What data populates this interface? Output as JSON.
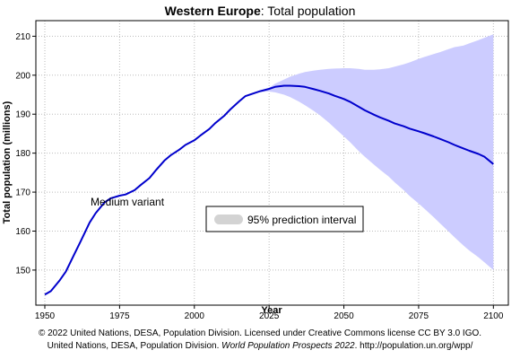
{
  "chart_data": {
    "type": "line",
    "title_bold": "Western Europe",
    "title_rest": ": Total population",
    "xlabel": "Year",
    "ylabel": "Total population (millions)",
    "xlim": [
      1947,
      2105
    ],
    "ylim": [
      141,
      214
    ],
    "xticks": [
      1950,
      1975,
      2000,
      2025,
      2050,
      2075,
      2100
    ],
    "yticks": [
      150,
      160,
      170,
      180,
      190,
      200,
      210
    ],
    "grid": true,
    "line_color": "#0000cc",
    "band_color": "#ccccff",
    "annotation": "Medium variant",
    "legend": {
      "label": "95% prediction interval",
      "placement": "center-right"
    },
    "series": [
      {
        "name": "Medium variant",
        "x": [
          1950,
          1952,
          1955,
          1957,
          1960,
          1962,
          1965,
          1967,
          1970,
          1972,
          1975,
          1977,
          1980,
          1982,
          1985,
          1987,
          1990,
          1992,
          1995,
          1997,
          2000,
          2002,
          2005,
          2007,
          2010,
          2012,
          2015,
          2017,
          2020,
          2022,
          2025,
          2027,
          2030,
          2032,
          2035,
          2037,
          2040,
          2042,
          2045,
          2047,
          2050,
          2052,
          2055,
          2057,
          2060,
          2062,
          2065,
          2067,
          2070,
          2072,
          2075,
          2077,
          2080,
          2082,
          2085,
          2087,
          2090,
          2092,
          2095,
          2097,
          2100
        ],
        "values": [
          143.7,
          144.6,
          147.4,
          149.6,
          154.3,
          157.4,
          162.2,
          164.6,
          167.4,
          168.4,
          169.1,
          169.4,
          170.5,
          171.8,
          173.6,
          175.5,
          178.1,
          179.4,
          180.9,
          182.1,
          183.3,
          184.5,
          186.2,
          187.7,
          189.6,
          191.2,
          193.3,
          194.6,
          195.4,
          195.9,
          196.5,
          197.0,
          197.3,
          197.3,
          197.2,
          197.0,
          196.4,
          196.0,
          195.3,
          194.7,
          193.9,
          193.2,
          191.9,
          191.0,
          189.9,
          189.2,
          188.3,
          187.6,
          186.9,
          186.3,
          185.6,
          185.1,
          184.3,
          183.7,
          182.8,
          182.1,
          181.2,
          180.6,
          179.8,
          179.1,
          177.2
        ]
      },
      {
        "name": "95% prediction interval",
        "x": [
          2020,
          2022,
          2025,
          2027,
          2030,
          2032,
          2035,
          2037,
          2040,
          2042,
          2045,
          2047,
          2050,
          2052,
          2055,
          2057,
          2060,
          2062,
          2065,
          2067,
          2070,
          2072,
          2075,
          2077,
          2080,
          2082,
          2085,
          2087,
          2090,
          2092,
          2095,
          2097,
          2100
        ],
        "upper": [
          195.4,
          195.9,
          196.8,
          197.8,
          198.9,
          199.6,
          200.4,
          200.8,
          201.2,
          201.4,
          201.6,
          201.7,
          201.8,
          201.8,
          201.6,
          201.4,
          201.4,
          201.5,
          201.8,
          202.2,
          202.8,
          203.3,
          204.2,
          204.7,
          205.4,
          205.9,
          206.7,
          207.2,
          207.6,
          208.2,
          209.0,
          209.6,
          210.5
        ],
        "lower": [
          195.4,
          195.7,
          195.8,
          195.6,
          195.0,
          194.4,
          193.2,
          192.3,
          190.8,
          189.7,
          187.8,
          186.4,
          184.3,
          182.9,
          180.5,
          179.1,
          177.1,
          175.8,
          174.0,
          172.5,
          170.5,
          169.0,
          167.1,
          165.7,
          163.6,
          162.1,
          159.9,
          158.4,
          156.3,
          155.0,
          153.3,
          152.0,
          150.0
        ]
      }
    ]
  },
  "footer": {
    "line1": "© 2022 United Nations, DESA, Population Division. Licensed under Creative Commons license CC BY 3.0 IGO.",
    "line2_pre": "United Nations, DESA, Population Division. ",
    "line2_italic": "World Population Prospects 2022",
    "line2_post": ". http://population.un.org/wpp/"
  }
}
